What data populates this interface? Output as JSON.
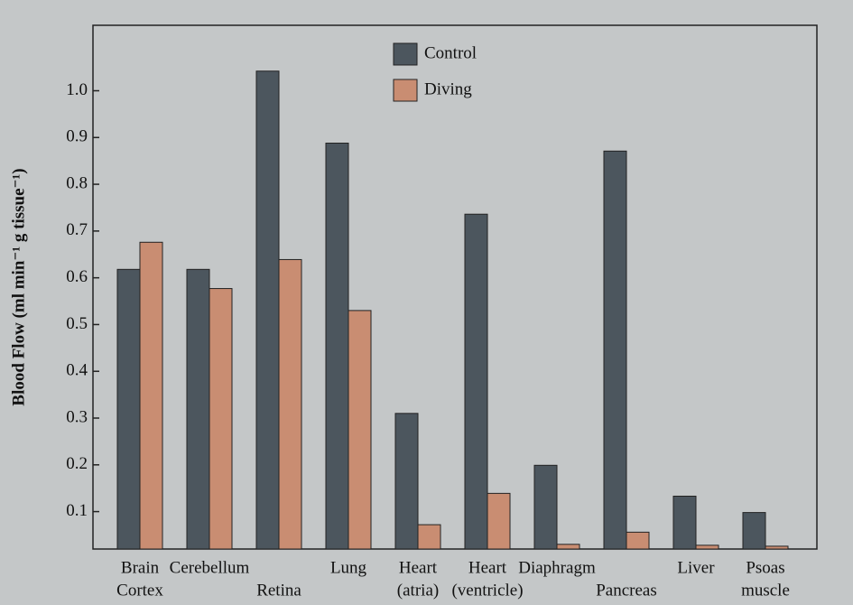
{
  "chart_data": {
    "type": "bar",
    "y_label": "Blood Flow (ml min⁻¹ g tissue⁻¹)",
    "categories": [
      [
        "Brain",
        "Cortex"
      ],
      [
        "Cerebellum"
      ],
      [
        "Retina"
      ],
      [
        "Lung"
      ],
      [
        "Heart",
        "(atria)"
      ],
      [
        "Heart",
        "(ventricle)"
      ],
      [
        "Diaphragm"
      ],
      [
        "Pancreas"
      ],
      [
        "Liver"
      ],
      [
        "Psoas",
        "muscle"
      ]
    ],
    "series": [
      {
        "name": "Control",
        "color": "#4c565e",
        "values": [
          0.618,
          0.618,
          1.042,
          0.888,
          0.31,
          0.736,
          0.199,
          0.871,
          0.133,
          0.098
        ]
      },
      {
        "name": "Diving",
        "color": "#c98d72",
        "values": [
          0.676,
          0.577,
          0.639,
          0.53,
          0.072,
          0.139,
          0.03,
          0.056,
          0.028,
          0.026
        ]
      }
    ],
    "ylim": [
      0.02,
      1.14
    ],
    "yticks": [
      0.1,
      0.2,
      0.3,
      0.4,
      0.5,
      0.6,
      0.7,
      0.8,
      0.9,
      {
        "value": 1,
        "label": "1.0"
      }
    ],
    "legend": "top-center"
  }
}
